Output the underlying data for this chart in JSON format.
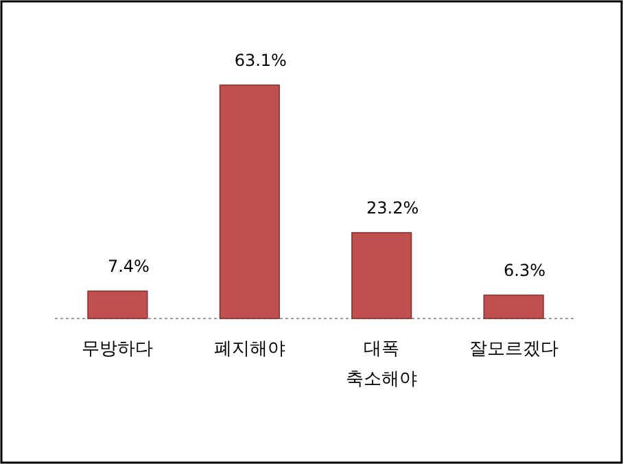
{
  "chart_data": {
    "type": "bar",
    "categories": [
      "무방하다",
      "폐지해야",
      "대폭 축소해야",
      "잘모르겠다"
    ],
    "values": [
      7.4,
      63.1,
      23.2,
      6.3
    ],
    "value_labels": [
      "7.4%",
      "63.1%",
      "23.2%",
      "6.3%"
    ],
    "color": "#c0504d"
  }
}
